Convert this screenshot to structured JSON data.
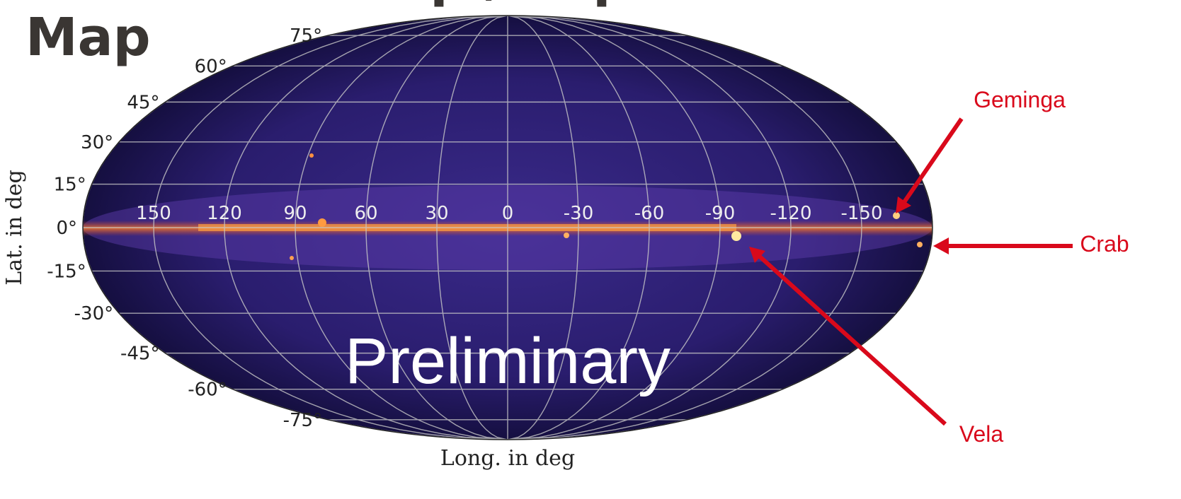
{
  "title": "Full Count Map / Exposure Map",
  "map": {
    "lat_labels": [
      "75°",
      "60°",
      "45°",
      "30°",
      "15°",
      "0°",
      "-15°",
      "-30°",
      "-45°",
      "-60°",
      "-75°"
    ],
    "lon_labels": [
      "150",
      "120",
      "90",
      "60",
      "30",
      "0",
      "-30",
      "-60",
      "-90",
      "-120",
      "-150"
    ],
    "y_label": "Lat. in deg",
    "x_label": "Long. in deg",
    "watermark": "Preliminary"
  },
  "annotations": {
    "geminga": "Geminga",
    "crab": "Crab",
    "vela": "Vela"
  }
}
